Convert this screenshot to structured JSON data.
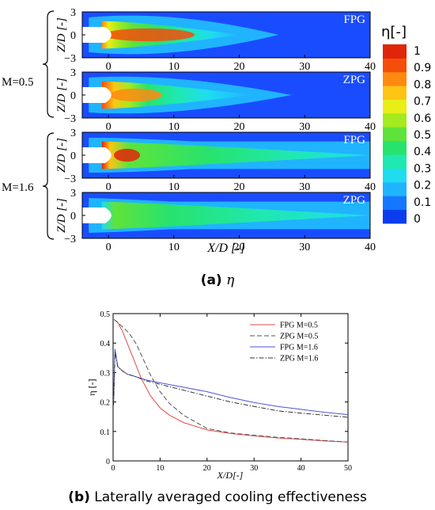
{
  "panel_a": {
    "caption_letter": "(a)",
    "caption_symbol": "η",
    "x_axis_label": "X/D [-]",
    "y_axis_label": "Z/D [-]",
    "group_labels": [
      "M=0.5",
      "M=1.6"
    ],
    "colorbar_label": "η[-]",
    "colorbar_ticks": [
      "1",
      "0.9",
      "0.8",
      "0.7",
      "0.6",
      "0.5",
      "0.4",
      "0.3",
      "0.2",
      "0.1",
      "0"
    ],
    "colorbar_colors": [
      "#0b3cf0",
      "#1577ff",
      "#20b4ff",
      "#1fdcf0",
      "#1fe8b0",
      "#27e36d",
      "#5fe33a",
      "#a4ea1f",
      "#e8ee16",
      "#ffc414",
      "#ff8a10",
      "#f54d0a",
      "#e0250a"
    ],
    "x_ticks": [
      "0",
      "10",
      "20",
      "30",
      "40"
    ],
    "y_ticks": [
      "3",
      "0",
      "−3"
    ],
    "panels": [
      {
        "label": "FPG",
        "M": "0.5"
      },
      {
        "label": "ZPG",
        "M": "0.5"
      },
      {
        "label": "FPG",
        "M": "1.6"
      },
      {
        "label": "ZPG",
        "M": "1.6"
      }
    ]
  },
  "chart_data": {
    "type": "line",
    "title": "",
    "xlabel": "X/D[-]",
    "ylabel": "η [-]",
    "xlim": [
      0,
      50
    ],
    "ylim": [
      0,
      0.5
    ],
    "x_ticks": [
      "0",
      "10",
      "20",
      "30",
      "40",
      "50"
    ],
    "y_ticks": [
      "0",
      "0.1",
      "0.2",
      "0.3",
      "0.4",
      "0.5"
    ],
    "legend_position": "top-right",
    "grid": false,
    "series": [
      {
        "name": "FPG M=0.5",
        "color": "#e04848",
        "style": "solid",
        "x": [
          0.2,
          1,
          2,
          3,
          4,
          5,
          6,
          8,
          10,
          12,
          15,
          20,
          25,
          30,
          35,
          40,
          45,
          50
        ],
        "y": [
          0.48,
          0.47,
          0.44,
          0.4,
          0.36,
          0.32,
          0.28,
          0.22,
          0.18,
          0.155,
          0.13,
          0.105,
          0.093,
          0.085,
          0.078,
          0.073,
          0.068,
          0.064
        ]
      },
      {
        "name": "ZPG M=0.5",
        "color": "#555555",
        "style": "dashed",
        "x": [
          0.2,
          1,
          2,
          3,
          4,
          5,
          6,
          8,
          10,
          12,
          15,
          20,
          25,
          30,
          35,
          40,
          45,
          50
        ],
        "y": [
          0.48,
          0.47,
          0.455,
          0.44,
          0.42,
          0.395,
          0.36,
          0.29,
          0.235,
          0.195,
          0.155,
          0.11,
          0.095,
          0.087,
          0.08,
          0.075,
          0.069,
          0.064
        ]
      },
      {
        "name": "FPG M=1.6",
        "color": "#4a55d8",
        "style": "solid",
        "x": [
          0.1,
          0.4,
          1,
          2,
          3,
          5,
          7,
          10,
          15,
          20,
          25,
          30,
          35,
          40,
          45,
          50
        ],
        "y": [
          0.2,
          0.38,
          0.32,
          0.305,
          0.295,
          0.285,
          0.275,
          0.265,
          0.25,
          0.235,
          0.215,
          0.198,
          0.185,
          0.175,
          0.165,
          0.157
        ]
      },
      {
        "name": "ZPG M=1.6",
        "color": "#333333",
        "style": "dashdot",
        "x": [
          0.1,
          0.4,
          1,
          2,
          3,
          5,
          7,
          10,
          15,
          20,
          25,
          30,
          35,
          40,
          45,
          50
        ],
        "y": [
          0.19,
          0.37,
          0.32,
          0.305,
          0.295,
          0.285,
          0.272,
          0.26,
          0.24,
          0.22,
          0.2,
          0.185,
          0.17,
          0.162,
          0.155,
          0.148
        ]
      }
    ]
  },
  "panel_b": {
    "caption_letter": "(b)",
    "caption_text": "Laterally averaged cooling effectiveness"
  }
}
